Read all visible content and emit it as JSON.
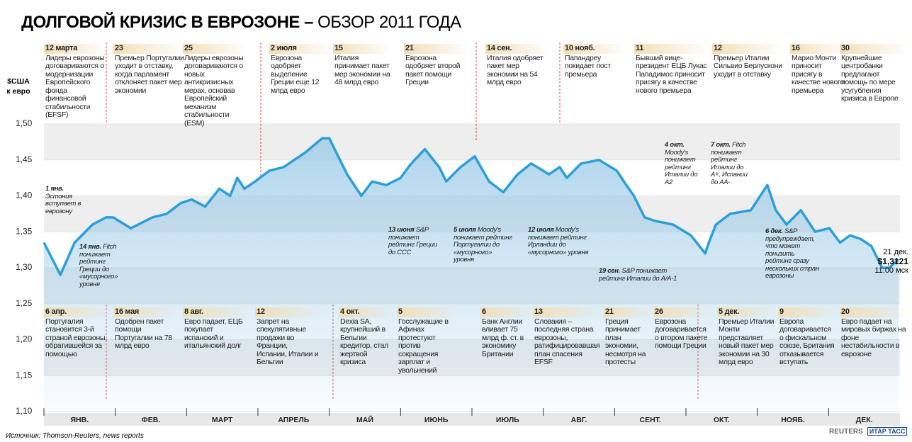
{
  "chart_data": {
    "type": "line",
    "title": "ДОЛГОВОЙ КРИЗИС В ЕВРОЗОНЕ –",
    "subtitle": "ОБЗОР 2011 ГОДА",
    "y_label": "$США к евро",
    "categories": [
      "ЯНВ.",
      "ФЕВ.",
      "МАРТ",
      "АПРЕЛЬ",
      "МАЙ",
      "ИЮНЬ",
      "ИЮЛЬ",
      "АВГ.",
      "СЕНТ.",
      "ОКТ.",
      "НОЯБ.",
      "ДЕК."
    ],
    "xlim": [
      0,
      12
    ],
    "x": [
      0,
      0.23,
      0.43,
      0.68,
      0.87,
      0.97,
      1.22,
      1.52,
      1.72,
      1.92,
      2.07,
      2.26,
      2.46,
      2.61,
      2.71,
      2.81,
      2.96,
      3.16,
      3.36,
      3.66,
      3.9,
      4.0,
      4.1,
      4.25,
      4.45,
      4.6,
      4.8,
      5.0,
      5.15,
      5.34,
      5.54,
      5.64,
      5.84,
      6.04,
      6.24,
      6.44,
      6.64,
      6.83,
      7.08,
      7.23,
      7.33,
      7.53,
      7.78,
      8.03,
      8.13,
      8.27,
      8.42,
      8.57,
      8.82,
      9.07,
      9.27,
      9.32,
      9.42,
      9.62,
      9.91,
      10.14,
      10.26,
      10.41,
      10.61,
      10.81,
      11.01,
      11.16,
      11.3,
      11.45,
      11.6,
      11.75,
      11.85,
      11.98
    ],
    "values": [
      1.335,
      1.29,
      1.335,
      1.36,
      1.37,
      1.37,
      1.355,
      1.37,
      1.375,
      1.39,
      1.395,
      1.385,
      1.41,
      1.4,
      1.425,
      1.41,
      1.42,
      1.435,
      1.44,
      1.46,
      1.48,
      1.48,
      1.46,
      1.43,
      1.4,
      1.42,
      1.415,
      1.425,
      1.445,
      1.465,
      1.44,
      1.42,
      1.44,
      1.455,
      1.42,
      1.405,
      1.43,
      1.445,
      1.43,
      1.44,
      1.425,
      1.445,
      1.45,
      1.435,
      1.42,
      1.4,
      1.37,
      1.365,
      1.36,
      1.345,
      1.32,
      1.335,
      1.36,
      1.375,
      1.38,
      1.415,
      1.38,
      1.36,
      1.38,
      1.35,
      1.355,
      1.335,
      1.345,
      1.34,
      1.33,
      1.3,
      1.3,
      1.3121
    ],
    "color": "#2b9fd9",
    "ylim": [
      1.1,
      1.5
    ],
    "yticks": [
      {
        "value": 1.1,
        "label": "1,10"
      },
      {
        "value": 1.15,
        "label": "1,15"
      },
      {
        "value": 1.2,
        "label": "1,20"
      },
      {
        "value": 1.25,
        "label": "1,25"
      },
      {
        "value": 1.3,
        "label": "1,30"
      },
      {
        "value": 1.35,
        "label": "1,35"
      },
      {
        "value": 1.4,
        "label": "1,40"
      },
      {
        "value": 1.45,
        "label": "1,45"
      },
      {
        "value": 1.5,
        "label": "1,50"
      }
    ],
    "top_events": [
      {
        "date": "12 марта",
        "text": "Лидеры еврозоны договариваются о модернизации Европейского фонда финансовой стабильности (EFSF)"
      },
      {
        "date": "23",
        "text": "Премьер Португалии уходит в отставку, когда парламент отклоняет пакет мер экономии"
      },
      {
        "date": "25",
        "text": "Лидеры еврозоны договариваются о новых антикризисных мерах, основав Европейский механизм стабильности (ESM)"
      },
      {
        "date": "2 июля",
        "text": "Еврозона одобряет выделение Греции еще 12 млрд евро"
      },
      {
        "date": "15",
        "text": "Италия принимает пакет мер экономии на 48 млрд евро"
      },
      {
        "date": "21",
        "text": "Еврозона одобряет второй пакет помощи Греции"
      },
      {
        "date": "14 сен.",
        "text": "Италия одобряет пакет мер экономии на 54 млрд евро"
      },
      {
        "date": "10 нояб.",
        "text": "Папандреу покидает пост премьера"
      },
      {
        "date": "11",
        "text": "Бывший вице-президент ЕЦБ Лукас Пападимос приносит присягу в качестве нового премьера"
      },
      {
        "date": "12",
        "text": "Премьер Италии Сильвио Берлускони уходит в отставку"
      },
      {
        "date": "16",
        "text": "Марио Монти приносит присягу в качестве нового премьера"
      },
      {
        "date": "30",
        "text": "Крупнейшие центробанки предлагают помощь по мере усугубления кризиса в Европе"
      }
    ],
    "bottom_events": [
      {
        "date": "6 апр.",
        "text": "Португалия становится 3-й страной еврозоны, обратившейся за помощью"
      },
      {
        "date": "16 мая",
        "text": "Одобрен пакет помощи Португалии на 78 млрд евро"
      },
      {
        "date": "8 авг.",
        "text": "Евро падает, ЕЦБ покупает испанский и итальянский долг"
      },
      {
        "date": "12",
        "text": "Запрет на спекулятивные продажи во Франции, Испании, Италии и Бельгии"
      },
      {
        "date": "4 окт.",
        "text": "Dexia SA, крупнейший в Бельгии кредитор, стал жертвой кризиса"
      },
      {
        "date": "5",
        "text": "Госслужащие в Афинах протестуют против сокращения зарплат и увольнений"
      },
      {
        "date": "6",
        "text": "Банк Англии вливает 75 млрд ф. ст. в экономику Британии"
      },
      {
        "date": "13",
        "text": "Словакия – последняя страна еврозоны, ратифицировавшая план спасения EFSF"
      },
      {
        "date": "21",
        "text": "Греция принимает план экономии, несмотря на протесты"
      },
      {
        "date": "26",
        "text": "Еврозона договаривается о втором пакете помощи Греции"
      },
      {
        "date": "5 дек.",
        "text": "Премьер Италии Монти представляет новый пакет мер экономии на 30 млрд евро"
      },
      {
        "date": "9",
        "text": "Европа договаривается о фискальном союзе, Британия отказывается вступать"
      },
      {
        "date": "20",
        "text": "Евро падает на мировых биржах на фоне нестабильности в еврозоне"
      }
    ],
    "callouts": [
      {
        "date": "1 янв.",
        "text": "Эстония вступает в еврозону"
      },
      {
        "date": "14 янв.",
        "text": "Fitch понижает рейтинг Греции до «мусорного» уровня"
      },
      {
        "date": "13 июня",
        "text": "S&P понижает рейтинг Греции до ССС"
      },
      {
        "date": "5 июля",
        "text": "Moody's понижает рейтинг Португалии до «мусорного» уровня"
      },
      {
        "date": "12 июля",
        "text": "Moody's понижает рейтинг Ирландии до «мусорного» уровня"
      },
      {
        "date": "19 сен.",
        "text": "S&P понижает рейтинг Италии до А/А-1"
      },
      {
        "date": "4 окт.",
        "text": "Moody's понижает рейтинг Италии до А2"
      },
      {
        "date": "7 окт.",
        "text": "Fitch понижает рейтинг Италии до А+, Испании до АА-"
      },
      {
        "date": "6 дек.",
        "text": "S&P предупреждает, что может понизить рейтинг сразу нескольких стран еврозоны"
      }
    ],
    "end_label": {
      "date": "21 дек.",
      "value": "$1,3121",
      "time": "11:00 мск"
    },
    "source": "Источник: Thomson-Reuters, news reports",
    "logos": [
      "REUTERS",
      "ИТАР ТАСС"
    ]
  }
}
